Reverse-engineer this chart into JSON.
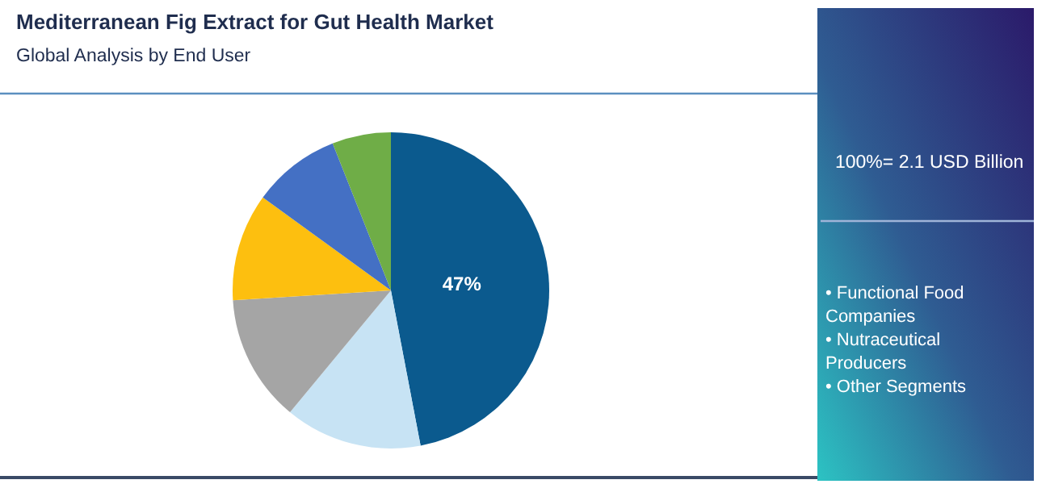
{
  "chart_data": {
    "type": "pie",
    "title": "Mediterranean Fig Extract for Gut Health Market",
    "subtitle": "Global Analysis by End User",
    "categories": [
      null,
      null,
      null,
      null,
      null,
      null
    ],
    "values": [
      47,
      14,
      13,
      11,
      9,
      6
    ],
    "value_labels": [
      "47%",
      null,
      null,
      null,
      null,
      null
    ],
    "colors": [
      "#0b5a8e",
      "#c7e3f4",
      "#a5a5a5",
      "#fdbf0f",
      "#4470c4",
      "#6fad47"
    ],
    "annotations": [
      "100%= 2.1 USD Billion",
      "• Functional Food Companies",
      "• Nutraceutical Producers",
      "• Other Segments"
    ]
  }
}
